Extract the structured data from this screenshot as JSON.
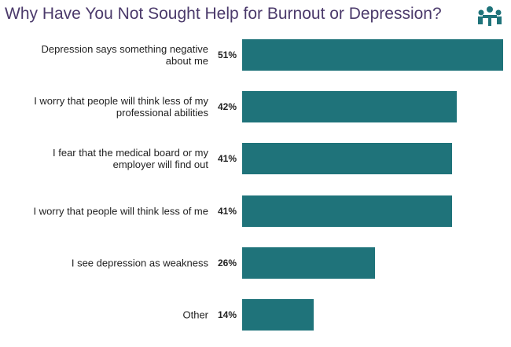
{
  "chart_data": {
    "type": "bar",
    "orientation": "horizontal",
    "title": "Why Have You Not Sought Help for Burnout or Depression?",
    "categories": [
      "Depression says something negative about me",
      "I worry that people will think less of my professional abilities",
      "I fear that the medical board or my employer will find out",
      "I worry that people will think less of me",
      "I see depression as weakness",
      "Other"
    ],
    "values": [
      51,
      42,
      41,
      41,
      26,
      14
    ],
    "value_labels": [
      "51%",
      "42%",
      "41%",
      "41%",
      "26%",
      "14%"
    ],
    "color": "#1f737a"
  }
}
